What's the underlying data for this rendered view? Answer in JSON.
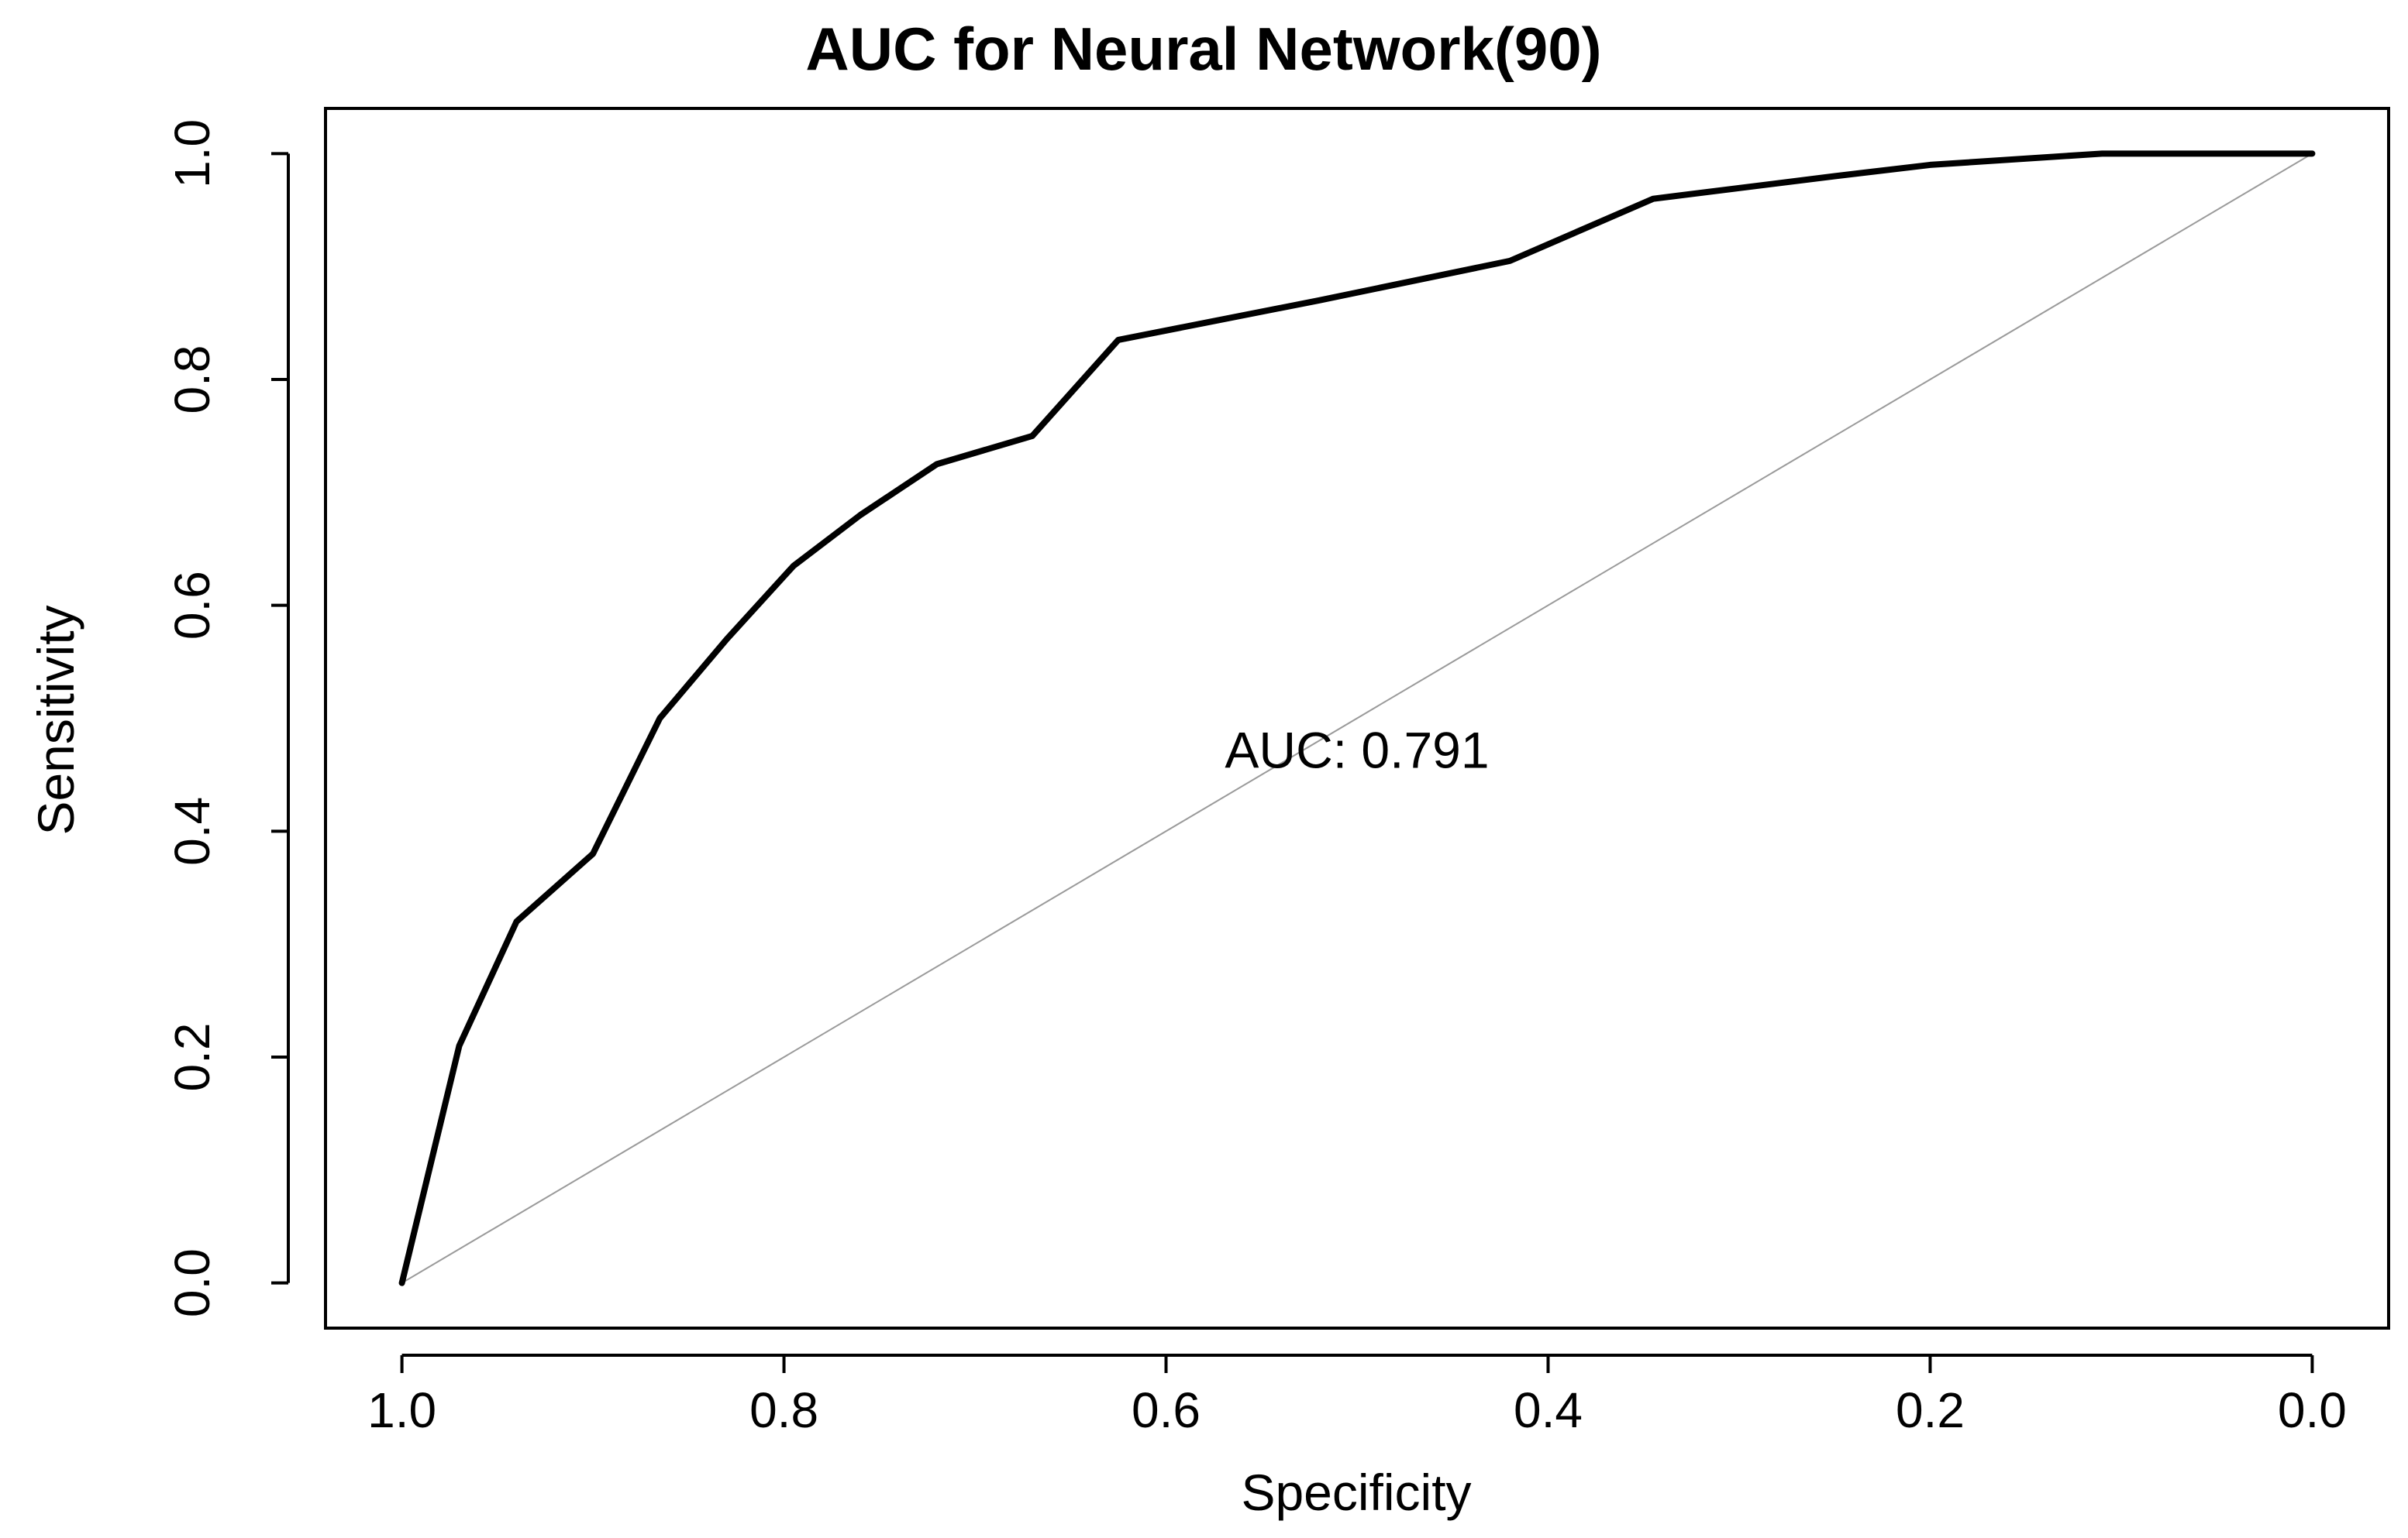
{
  "chart_data": {
    "type": "line",
    "title": "AUC for Neural Network(90)",
    "xlabel": "Specificity",
    "ylabel": "Sensitivity",
    "x_reversed": true,
    "xlim": [
      1.04,
      -0.04
    ],
    "ylim": [
      -0.04,
      1.04
    ],
    "x_ticks": [
      1.0,
      0.8,
      0.6,
      0.4,
      0.2,
      0.0
    ],
    "x_tick_labels": [
      "1.0",
      "0.8",
      "0.6",
      "0.4",
      "0.2",
      "0.0"
    ],
    "y_ticks": [
      0.0,
      0.2,
      0.4,
      0.6,
      0.8,
      1.0
    ],
    "y_tick_labels": [
      "0.0",
      "0.2",
      "0.4",
      "0.6",
      "0.8",
      "1.0"
    ],
    "grid": false,
    "series": [
      {
        "x": [
          1.0,
          0.97,
          0.94,
          0.9,
          0.865,
          0.83,
          0.795,
          0.76,
          0.72,
          0.67,
          0.625,
          0.58,
          0.52,
          0.42,
          0.345,
          0.25,
          0.2,
          0.11,
          0.0
        ],
        "y": [
          0.0,
          0.21,
          0.32,
          0.38,
          0.5,
          0.57,
          0.635,
          0.68,
          0.725,
          0.75,
          0.835,
          0.85,
          0.87,
          0.905,
          0.96,
          0.98,
          0.99,
          1.0,
          1.0
        ],
        "color": "#000000"
      }
    ],
    "reference_line": {
      "x": [
        1.0,
        0.0
      ],
      "y": [
        0.0,
        1.0
      ],
      "color": "#9a9a9a"
    },
    "annotations": [
      {
        "text": "AUC: 0.791",
        "x": 0.5,
        "y": 0.47
      }
    ]
  }
}
